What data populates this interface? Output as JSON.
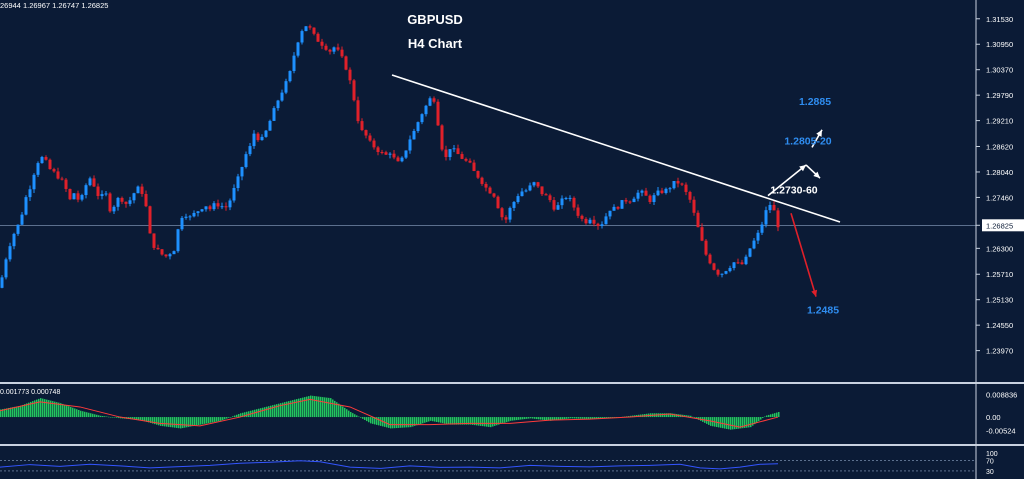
{
  "ohlc_header": "26944 1.26967 1.26747 1.26825",
  "macd_header": "0.001773 0.000748",
  "title": {
    "line1": "GBPUSD",
    "line2": "H4 Chart"
  },
  "colors": {
    "background": "#0b1b36",
    "bull": "#1e90ff",
    "bear": "#e0202a",
    "hist": "#22c55e",
    "signal": "#ff3b3b",
    "rsi": "#3355ff",
    "text": "#ffffff",
    "label_blue": "#2f8df0"
  },
  "chart_data": [
    {
      "type": "candlestick",
      "symbol": "GBPUSD",
      "timeframe": "H4",
      "ylim": [
        1.2346,
        1.3173
      ],
      "y_ticks": [
        "1.31530",
        "1.30950",
        "1.30370",
        "1.29790",
        "1.29210",
        "1.28620",
        "1.28040",
        "1.27460",
        "1.26825",
        "1.26300",
        "1.25710",
        "1.25130",
        "1.24550",
        "1.23970"
      ],
      "current_price": "1.26825",
      "path": [
        [
          0,
          1.254
        ],
        [
          5,
          1.26
        ],
        [
          10,
          1.264
        ],
        [
          15,
          1.267
        ],
        [
          20,
          1.269
        ],
        [
          25,
          1.274
        ],
        [
          30,
          1.277
        ],
        [
          35,
          1.281
        ],
        [
          40,
          1.284
        ],
        [
          45,
          1.283
        ],
        [
          50,
          1.281
        ],
        [
          55,
          1.28
        ],
        [
          60,
          1.279
        ],
        [
          65,
          1.277
        ],
        [
          70,
          1.274
        ],
        [
          75,
          1.276
        ],
        [
          80,
          1.273
        ],
        [
          85,
          1.277
        ],
        [
          90,
          1.279
        ],
        [
          95,
          1.277
        ],
        [
          100,
          1.274
        ],
        [
          105,
          1.276
        ],
        [
          110,
          1.272
        ],
        [
          115,
          1.273
        ],
        [
          120,
          1.275
        ],
        [
          125,
          1.273
        ],
        [
          130,
          1.274
        ],
        [
          135,
          1.276
        ],
        [
          140,
          1.277
        ],
        [
          145,
          1.274
        ],
        [
          150,
          1.266
        ],
        [
          155,
          1.263
        ],
        [
          160,
          1.262
        ],
        [
          165,
          1.261
        ],
        [
          170,
          1.262
        ],
        [
          175,
          1.263
        ],
        [
          180,
          1.27
        ],
        [
          185,
          1.271
        ],
        [
          190,
          1.27
        ],
        [
          195,
          1.271
        ],
        [
          200,
          1.272
        ],
        [
          205,
          1.273
        ],
        [
          210,
          1.272
        ],
        [
          215,
          1.273
        ],
        [
          220,
          1.273
        ],
        [
          225,
          1.272
        ],
        [
          230,
          1.274
        ],
        [
          235,
          1.277
        ],
        [
          240,
          1.28
        ],
        [
          245,
          1.284
        ],
        [
          250,
          1.286
        ],
        [
          255,
          1.29
        ],
        [
          260,
          1.287
        ],
        [
          265,
          1.289
        ],
        [
          270,
          1.292
        ],
        [
          275,
          1.295
        ],
        [
          280,
          1.298
        ],
        [
          285,
          1.3
        ],
        [
          290,
          1.303
        ],
        [
          295,
          1.308
        ],
        [
          300,
          1.312
        ],
        [
          305,
          1.314
        ],
        [
          310,
          1.313
        ],
        [
          315,
          1.311
        ],
        [
          320,
          1.31
        ],
        [
          325,
          1.309
        ],
        [
          330,
          1.308
        ],
        [
          335,
          1.309
        ],
        [
          340,
          1.307
        ],
        [
          345,
          1.305
        ],
        [
          350,
          1.301
        ],
        [
          355,
          1.296
        ],
        [
          360,
          1.29
        ],
        [
          365,
          1.289
        ],
        [
          370,
          1.287
        ],
        [
          375,
          1.286
        ],
        [
          380,
          1.285
        ],
        [
          385,
          1.284
        ],
        [
          390,
          1.285
        ],
        [
          395,
          1.283
        ],
        [
          400,
          1.282
        ],
        [
          405,
          1.285
        ],
        [
          410,
          1.288
        ],
        [
          415,
          1.29
        ],
        [
          420,
          1.293
        ],
        [
          425,
          1.295
        ],
        [
          430,
          1.297
        ],
        [
          435,
          1.297
        ],
        [
          440,
          1.288
        ],
        [
          445,
          1.283
        ],
        [
          450,
          1.286
        ],
        [
          455,
          1.285
        ],
        [
          460,
          1.284
        ],
        [
          465,
          1.283
        ],
        [
          470,
          1.282
        ],
        [
          475,
          1.28
        ],
        [
          480,
          1.279
        ],
        [
          485,
          1.277
        ],
        [
          490,
          1.276
        ],
        [
          495,
          1.275
        ],
        [
          500,
          1.271
        ],
        [
          505,
          1.269
        ],
        [
          510,
          1.272
        ],
        [
          515,
          1.274
        ],
        [
          520,
          1.276
        ],
        [
          525,
          1.276
        ],
        [
          530,
          1.277
        ],
        [
          535,
          1.278
        ],
        [
          540,
          1.276
        ],
        [
          545,
          1.275
        ],
        [
          550,
          1.274
        ],
        [
          555,
          1.272
        ],
        [
          560,
          1.273
        ],
        [
          565,
          1.275
        ],
        [
          570,
          1.274
        ],
        [
          575,
          1.272
        ],
        [
          580,
          1.27
        ],
        [
          585,
          1.269
        ],
        [
          590,
          1.27
        ],
        [
          595,
          1.269
        ],
        [
          600,
          1.268
        ],
        [
          605,
          1.27
        ],
        [
          610,
          1.272
        ],
        [
          615,
          1.272
        ],
        [
          620,
          1.273
        ],
        [
          625,
          1.274
        ],
        [
          630,
          1.274
        ],
        [
          635,
          1.275
        ],
        [
          640,
          1.276
        ],
        [
          645,
          1.275
        ],
        [
          650,
          1.274
        ],
        [
          655,
          1.275
        ],
        [
          660,
          1.276
        ],
        [
          665,
          1.276
        ],
        [
          670,
          1.277
        ],
        [
          675,
          1.278
        ],
        [
          680,
          1.278
        ],
        [
          685,
          1.276
        ],
        [
          690,
          1.274
        ],
        [
          695,
          1.27
        ],
        [
          700,
          1.266
        ],
        [
          705,
          1.262
        ],
        [
          710,
          1.26
        ],
        [
          715,
          1.258
        ],
        [
          720,
          1.257
        ],
        [
          725,
          1.258
        ],
        [
          730,
          1.259
        ],
        [
          735,
          1.26
        ],
        [
          740,
          1.259
        ],
        [
          745,
          1.26
        ],
        [
          750,
          1.263
        ],
        [
          755,
          1.265
        ],
        [
          760,
          1.267
        ],
        [
          765,
          1.271
        ],
        [
          770,
          1.273
        ],
        [
          775,
          1.271
        ],
        [
          778,
          1.2683
        ]
      ],
      "trendline": {
        "from": [
          392,
          1.3025
        ],
        "to": [
          840,
          1.269
        ]
      },
      "projection": [
        {
          "from": [
            768,
            1.275
          ],
          "to": [
            806,
            1.282
          ],
          "color": "white"
        },
        {
          "from": [
            806,
            1.282
          ],
          "to": [
            820,
            1.279
          ],
          "color": "white"
        },
        {
          "from": [
            812,
            1.286
          ],
          "to": [
            822,
            1.29
          ],
          "color": "white"
        },
        {
          "from": [
            791,
            1.271
          ],
          "to": [
            816,
            1.252
          ],
          "color": "red"
        }
      ],
      "annotations": [
        {
          "text": "1.2885",
          "x": 815,
          "y": 1.2957,
          "color": "blue"
        },
        {
          "text": "1.2805-20",
          "x": 808,
          "y": 1.2867,
          "color": "blue"
        },
        {
          "text": "1.2730-60",
          "x": 794,
          "y": 1.2755,
          "color": "white"
        },
        {
          "text": "1.2485",
          "x": 823,
          "y": 1.2482,
          "color": "blue"
        }
      ]
    },
    {
      "type": "histogram",
      "indicator": "MACD",
      "ylim": [
        -0.0075,
        0.0115
      ],
      "y_ticks": [
        "0.008836",
        "0.00",
        "-0.00524"
      ],
      "histogram": [
        [
          0,
          0.003
        ],
        [
          20,
          0.0045
        ],
        [
          40,
          0.0075
        ],
        [
          60,
          0.0055
        ],
        [
          80,
          0.0025
        ],
        [
          100,
          0.0005
        ],
        [
          120,
          -0.0005
        ],
        [
          140,
          -0.0012
        ],
        [
          160,
          -0.0035
        ],
        [
          180,
          -0.0045
        ],
        [
          200,
          -0.003
        ],
        [
          220,
          -0.0015
        ],
        [
          240,
          0.0015
        ],
        [
          260,
          0.0035
        ],
        [
          280,
          0.0055
        ],
        [
          300,
          0.0075
        ],
        [
          310,
          0.0085
        ],
        [
          330,
          0.0075
        ],
        [
          350,
          0.002
        ],
        [
          370,
          -0.0025
        ],
        [
          390,
          -0.0045
        ],
        [
          410,
          -0.004
        ],
        [
          430,
          -0.0015
        ],
        [
          450,
          -0.003
        ],
        [
          470,
          -0.003
        ],
        [
          490,
          -0.004
        ],
        [
          510,
          -0.0015
        ],
        [
          530,
          -0.0005
        ],
        [
          550,
          -0.0015
        ],
        [
          570,
          -0.0005
        ],
        [
          590,
          -0.0008
        ],
        [
          610,
          -0.0005
        ],
        [
          630,
          0.0005
        ],
        [
          650,
          0.0015
        ],
        [
          670,
          0.0015
        ],
        [
          690,
          0.0005
        ],
        [
          710,
          -0.0035
        ],
        [
          730,
          -0.005
        ],
        [
          750,
          -0.004
        ],
        [
          765,
          0.0005
        ],
        [
          778,
          0.002
        ]
      ],
      "signal": [
        [
          0,
          0.0025
        ],
        [
          40,
          0.006
        ],
        [
          80,
          0.004
        ],
        [
          120,
          0.0
        ],
        [
          160,
          -0.0025
        ],
        [
          200,
          -0.0035
        ],
        [
          240,
          0.0
        ],
        [
          280,
          0.0045
        ],
        [
          310,
          0.007
        ],
        [
          350,
          0.004
        ],
        [
          390,
          -0.003
        ],
        [
          430,
          -0.003
        ],
        [
          470,
          -0.0025
        ],
        [
          510,
          -0.0025
        ],
        [
          550,
          -0.0012
        ],
        [
          590,
          -0.0008
        ],
        [
          630,
          0.0
        ],
        [
          670,
          0.0012
        ],
        [
          710,
          -0.0015
        ],
        [
          740,
          -0.004
        ],
        [
          778,
          0.0
        ]
      ]
    },
    {
      "type": "line",
      "indicator": "RSI",
      "ylim": [
        26,
        104
      ],
      "y_ticks": [
        "100",
        "70",
        "30"
      ],
      "levels": [
        70,
        30
      ],
      "series": [
        [
          0,
          45
        ],
        [
          30,
          55
        ],
        [
          60,
          48
        ],
        [
          90,
          56
        ],
        [
          120,
          50
        ],
        [
          150,
          42
        ],
        [
          180,
          47
        ],
        [
          210,
          52
        ],
        [
          240,
          60
        ],
        [
          270,
          64
        ],
        [
          300,
          70
        ],
        [
          320,
          66
        ],
        [
          350,
          45
        ],
        [
          380,
          40
        ],
        [
          410,
          50
        ],
        [
          440,
          44
        ],
        [
          470,
          45
        ],
        [
          500,
          42
        ],
        [
          530,
          52
        ],
        [
          560,
          48
        ],
        [
          590,
          46
        ],
        [
          620,
          50
        ],
        [
          650,
          52
        ],
        [
          680,
          56
        ],
        [
          700,
          42
        ],
        [
          720,
          38
        ],
        [
          740,
          45
        ],
        [
          760,
          56
        ],
        [
          778,
          58
        ]
      ]
    }
  ]
}
